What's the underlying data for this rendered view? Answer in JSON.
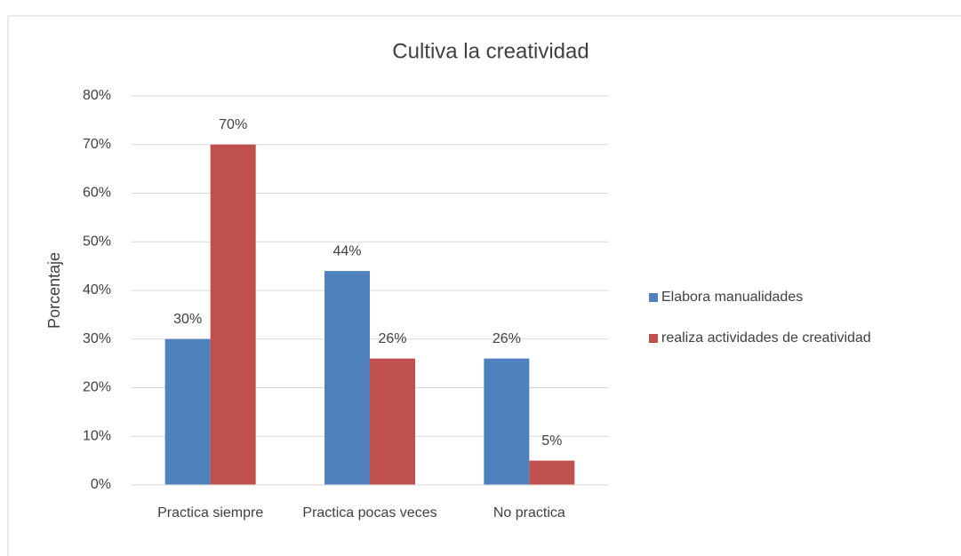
{
  "chart_data": {
    "type": "bar",
    "title": "Cultiva la creatividad",
    "y_label": "Porcentaje",
    "categories": [
      "Practica siempre",
      "Practica pocas veces",
      "No practica"
    ],
    "series": [
      {
        "name": "Elabora manualidades",
        "color": "#4f81bd",
        "values": [
          30,
          44,
          26
        ],
        "value_labels": [
          "30%",
          "44%",
          "26%"
        ]
      },
      {
        "name": "realiza actividades de creatividad",
        "color": "#c0504d",
        "values": [
          70,
          26,
          5
        ],
        "value_labels": [
          "70%",
          "26%",
          "5%"
        ]
      }
    ],
    "ylim": [
      0,
      80
    ],
    "yticks": [
      {
        "value": 0,
        "label": "0%"
      },
      {
        "value": 10,
        "label": "10%"
      },
      {
        "value": 20,
        "label": "20%"
      },
      {
        "value": 30,
        "label": "30%"
      },
      {
        "value": 40,
        "label": "40%"
      },
      {
        "value": 50,
        "label": "50%"
      },
      {
        "value": 60,
        "label": "60%"
      },
      {
        "value": 70,
        "label": "70%"
      },
      {
        "value": 80,
        "label": "80%"
      }
    ],
    "grid": true,
    "legend": "right"
  }
}
